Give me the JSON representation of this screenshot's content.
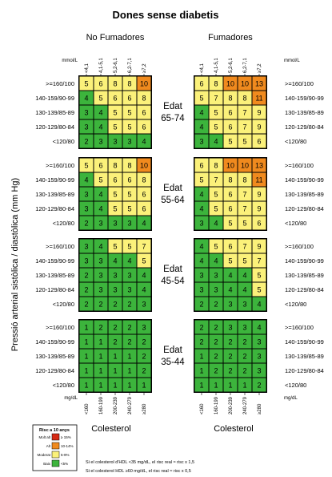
{
  "chart_data": {
    "type": "heatmap",
    "title": "Dones sense diabetis",
    "group_labels": [
      "No Fumadores",
      "Fumadores"
    ],
    "ylabel": "Pressió arterial sistòlica / diastòlica (mm Hg)",
    "xlabel": "Colesterol",
    "mmol_unit": "mmol/L",
    "mgdl_unit": "mg/dL",
    "mmol_ticks": [
      "<4,1",
      "4,1-5,1",
      "5,2-6,1",
      "6,2-7,1",
      "≥7,2"
    ],
    "mgdl_ticks": [
      "<160",
      "160-199",
      "200-239",
      "240-279",
      "≥280"
    ],
    "bp_rows": [
      ">=160/100",
      "140-159/90-99",
      "130-139/85-89",
      "120-129/80-84",
      "<120/80"
    ],
    "age_bands": [
      {
        "label": "Edat 65-74",
        "no_smokers": [
          [
            5,
            6,
            8,
            8,
            10
          ],
          [
            4,
            5,
            6,
            6,
            8
          ],
          [
            3,
            4,
            5,
            5,
            6
          ],
          [
            3,
            4,
            5,
            5,
            6
          ],
          [
            2,
            3,
            3,
            3,
            4
          ]
        ],
        "smokers": [
          [
            6,
            8,
            10,
            10,
            13
          ],
          [
            5,
            7,
            8,
            8,
            11
          ],
          [
            4,
            5,
            6,
            7,
            9
          ],
          [
            4,
            5,
            6,
            7,
            9
          ],
          [
            3,
            4,
            5,
            5,
            6
          ]
        ]
      },
      {
        "label": "Edat 55-64",
        "no_smokers": [
          [
            5,
            6,
            8,
            8,
            10
          ],
          [
            4,
            5,
            6,
            6,
            8
          ],
          [
            3,
            4,
            5,
            5,
            6
          ],
          [
            3,
            4,
            5,
            5,
            6
          ],
          [
            2,
            3,
            3,
            3,
            4
          ]
        ],
        "smokers": [
          [
            6,
            8,
            10,
            10,
            13
          ],
          [
            5,
            7,
            8,
            8,
            11
          ],
          [
            4,
            5,
            6,
            7,
            9
          ],
          [
            4,
            5,
            6,
            7,
            9
          ],
          [
            3,
            4,
            5,
            5,
            6
          ]
        ]
      },
      {
        "label": "Edat 45-54",
        "no_smokers": [
          [
            3,
            4,
            5,
            5,
            7
          ],
          [
            3,
            3,
            4,
            4,
            5
          ],
          [
            2,
            3,
            3,
            3,
            4
          ],
          [
            2,
            3,
            3,
            3,
            4
          ],
          [
            2,
            2,
            2,
            2,
            3
          ]
        ],
        "smokers": [
          [
            4,
            5,
            6,
            7,
            9
          ],
          [
            4,
            4,
            5,
            5,
            7
          ],
          [
            3,
            3,
            4,
            4,
            5
          ],
          [
            3,
            3,
            4,
            4,
            5
          ],
          [
            2,
            2,
            3,
            3,
            4
          ]
        ]
      },
      {
        "label": "Edat 35-44",
        "no_smokers": [
          [
            1,
            2,
            2,
            2,
            3
          ],
          [
            1,
            1,
            2,
            2,
            2
          ],
          [
            1,
            1,
            1,
            1,
            2
          ],
          [
            1,
            1,
            1,
            1,
            2
          ],
          [
            1,
            1,
            1,
            1,
            1
          ]
        ],
        "smokers": [
          [
            2,
            2,
            3,
            3,
            4
          ],
          [
            2,
            2,
            2,
            2,
            3
          ],
          [
            1,
            2,
            2,
            2,
            3
          ],
          [
            1,
            2,
            2,
            2,
            3
          ],
          [
            1,
            1,
            1,
            1,
            2
          ]
        ]
      }
    ],
    "legend": {
      "title": "Risc a 10 anys",
      "items": [
        {
          "label": "Molt alt",
          "range": "≥ 15%",
          "color": "#d62a14"
        },
        {
          "label": "Alt",
          "range": "10-14%",
          "color": "#f08a1e"
        },
        {
          "label": "Moderat",
          "range": "5-9%",
          "color": "#fbf17a"
        },
        {
          "label": "Baix",
          "range": "<5%",
          "color": "#3cb43c"
        }
      ]
    },
    "notes": [
      "Si el colesterol d'HDL <35 mg/dL, el risc real ≈ risc x 1,5",
      "Si el colesterol HDL ≥60 mg/dL, el risc real ≈ risc x 0,5"
    ]
  }
}
